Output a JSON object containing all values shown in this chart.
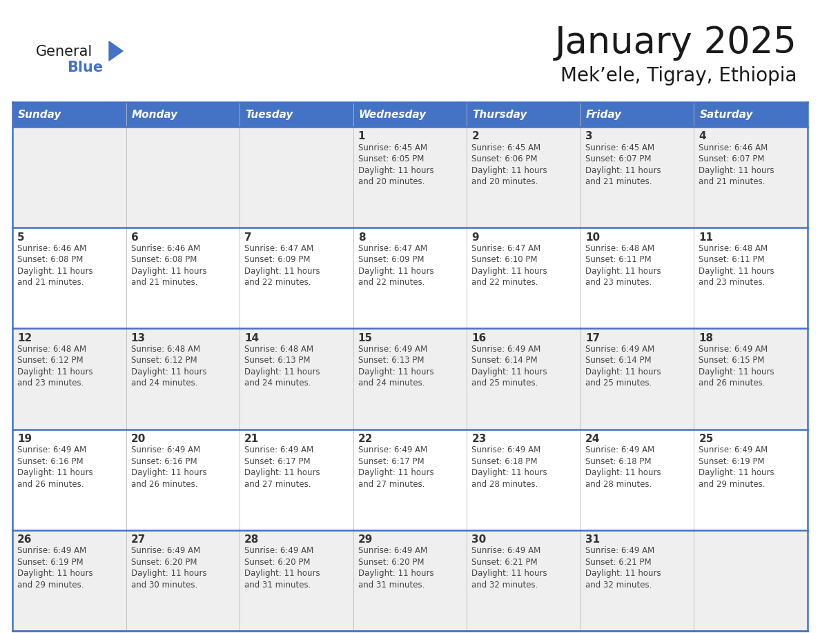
{
  "title": "January 2025",
  "subtitle": "Mek’ele, Tigray, Ethiopia",
  "days_of_week": [
    "Sunday",
    "Monday",
    "Tuesday",
    "Wednesday",
    "Thursday",
    "Friday",
    "Saturday"
  ],
  "header_bg": "#4472C4",
  "header_text": "#FFFFFF",
  "row_bg_even": "#EFEFEF",
  "row_bg_odd": "#FFFFFF",
  "cell_text_color": "#444444",
  "day_num_color": "#333333",
  "border_color": "#4472C4",
  "title_color": "#1a1a1a",
  "logo_general_color": "#1a1a1a",
  "logo_blue_color": "#4472C4",
  "logo_triangle_color": "#4472C4",
  "calendar_data": [
    [
      {
        "day": "",
        "sunrise": "",
        "sunset": "",
        "daylight": ""
      },
      {
        "day": "",
        "sunrise": "",
        "sunset": "",
        "daylight": ""
      },
      {
        "day": "",
        "sunrise": "",
        "sunset": "",
        "daylight": ""
      },
      {
        "day": "1",
        "sunrise": "6:45 AM",
        "sunset": "6:05 PM",
        "daylight": "11 hours and 20 minutes."
      },
      {
        "day": "2",
        "sunrise": "6:45 AM",
        "sunset": "6:06 PM",
        "daylight": "11 hours and 20 minutes."
      },
      {
        "day": "3",
        "sunrise": "6:45 AM",
        "sunset": "6:07 PM",
        "daylight": "11 hours and 21 minutes."
      },
      {
        "day": "4",
        "sunrise": "6:46 AM",
        "sunset": "6:07 PM",
        "daylight": "11 hours and 21 minutes."
      }
    ],
    [
      {
        "day": "5",
        "sunrise": "6:46 AM",
        "sunset": "6:08 PM",
        "daylight": "11 hours and 21 minutes."
      },
      {
        "day": "6",
        "sunrise": "6:46 AM",
        "sunset": "6:08 PM",
        "daylight": "11 hours and 21 minutes."
      },
      {
        "day": "7",
        "sunrise": "6:47 AM",
        "sunset": "6:09 PM",
        "daylight": "11 hours and 22 minutes."
      },
      {
        "day": "8",
        "sunrise": "6:47 AM",
        "sunset": "6:09 PM",
        "daylight": "11 hours and 22 minutes."
      },
      {
        "day": "9",
        "sunrise": "6:47 AM",
        "sunset": "6:10 PM",
        "daylight": "11 hours and 22 minutes."
      },
      {
        "day": "10",
        "sunrise": "6:48 AM",
        "sunset": "6:11 PM",
        "daylight": "11 hours and 23 minutes."
      },
      {
        "day": "11",
        "sunrise": "6:48 AM",
        "sunset": "6:11 PM",
        "daylight": "11 hours and 23 minutes."
      }
    ],
    [
      {
        "day": "12",
        "sunrise": "6:48 AM",
        "sunset": "6:12 PM",
        "daylight": "11 hours and 23 minutes."
      },
      {
        "day": "13",
        "sunrise": "6:48 AM",
        "sunset": "6:12 PM",
        "daylight": "11 hours and 24 minutes."
      },
      {
        "day": "14",
        "sunrise": "6:48 AM",
        "sunset": "6:13 PM",
        "daylight": "11 hours and 24 minutes."
      },
      {
        "day": "15",
        "sunrise": "6:49 AM",
        "sunset": "6:13 PM",
        "daylight": "11 hours and 24 minutes."
      },
      {
        "day": "16",
        "sunrise": "6:49 AM",
        "sunset": "6:14 PM",
        "daylight": "11 hours and 25 minutes."
      },
      {
        "day": "17",
        "sunrise": "6:49 AM",
        "sunset": "6:14 PM",
        "daylight": "11 hours and 25 minutes."
      },
      {
        "day": "18",
        "sunrise": "6:49 AM",
        "sunset": "6:15 PM",
        "daylight": "11 hours and 26 minutes."
      }
    ],
    [
      {
        "day": "19",
        "sunrise": "6:49 AM",
        "sunset": "6:16 PM",
        "daylight": "11 hours and 26 minutes."
      },
      {
        "day": "20",
        "sunrise": "6:49 AM",
        "sunset": "6:16 PM",
        "daylight": "11 hours and 26 minutes."
      },
      {
        "day": "21",
        "sunrise": "6:49 AM",
        "sunset": "6:17 PM",
        "daylight": "11 hours and 27 minutes."
      },
      {
        "day": "22",
        "sunrise": "6:49 AM",
        "sunset": "6:17 PM",
        "daylight": "11 hours and 27 minutes."
      },
      {
        "day": "23",
        "sunrise": "6:49 AM",
        "sunset": "6:18 PM",
        "daylight": "11 hours and 28 minutes."
      },
      {
        "day": "24",
        "sunrise": "6:49 AM",
        "sunset": "6:18 PM",
        "daylight": "11 hours and 28 minutes."
      },
      {
        "day": "25",
        "sunrise": "6:49 AM",
        "sunset": "6:19 PM",
        "daylight": "11 hours and 29 minutes."
      }
    ],
    [
      {
        "day": "26",
        "sunrise": "6:49 AM",
        "sunset": "6:19 PM",
        "daylight": "11 hours and 29 minutes."
      },
      {
        "day": "27",
        "sunrise": "6:49 AM",
        "sunset": "6:20 PM",
        "daylight": "11 hours and 30 minutes."
      },
      {
        "day": "28",
        "sunrise": "6:49 AM",
        "sunset": "6:20 PM",
        "daylight": "11 hours and 31 minutes."
      },
      {
        "day": "29",
        "sunrise": "6:49 AM",
        "sunset": "6:20 PM",
        "daylight": "11 hours and 31 minutes."
      },
      {
        "day": "30",
        "sunrise": "6:49 AM",
        "sunset": "6:21 PM",
        "daylight": "11 hours and 32 minutes."
      },
      {
        "day": "31",
        "sunrise": "6:49 AM",
        "sunset": "6:21 PM",
        "daylight": "11 hours and 32 minutes."
      },
      {
        "day": "",
        "sunrise": "",
        "sunset": "",
        "daylight": ""
      }
    ]
  ]
}
